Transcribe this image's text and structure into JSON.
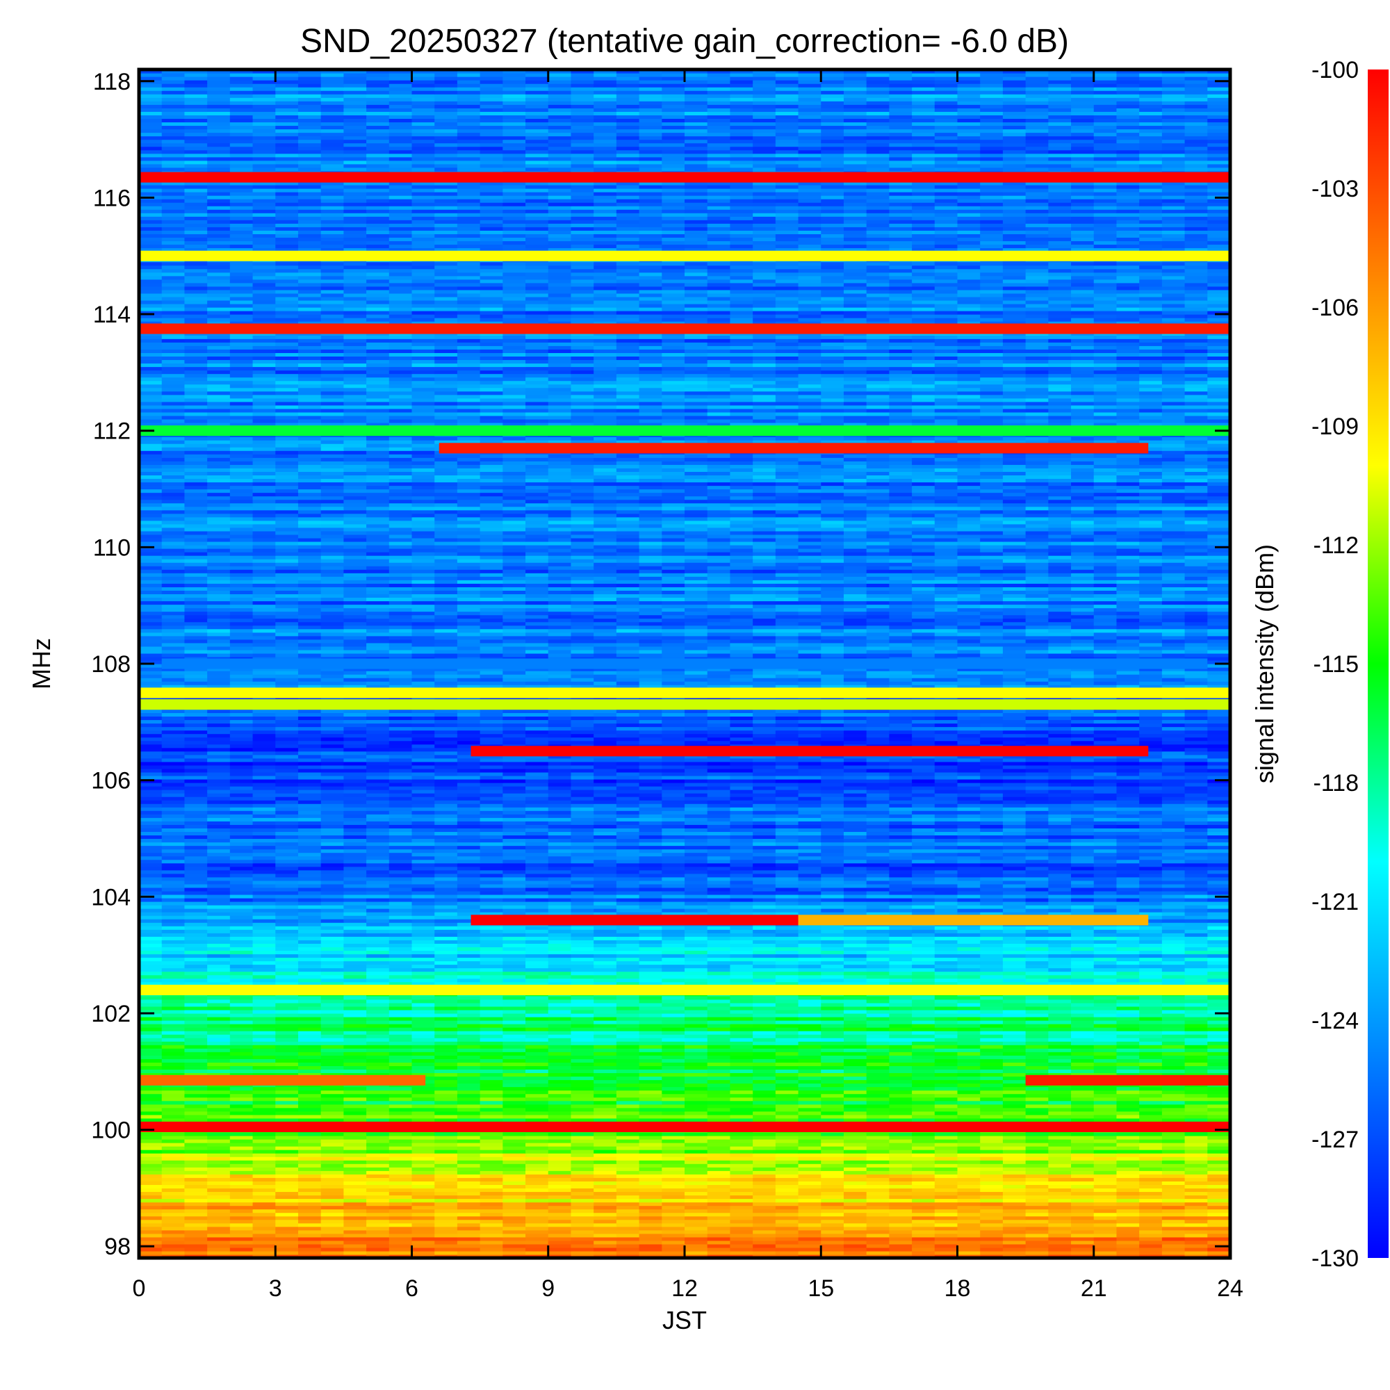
{
  "chart_data": {
    "type": "heatmap",
    "title": "SND_20250327 (tentative gain_correction= -6.0 dB)",
    "xlabel": "JST",
    "ylabel": "MHz",
    "colorbar_label": "signal intensity (dBm)",
    "xlim": [
      0,
      24
    ],
    "ylim": [
      97.8,
      118.2
    ],
    "clim": [
      -130,
      -100
    ],
    "x_ticks": [
      0,
      3,
      6,
      9,
      12,
      15,
      18,
      21,
      24
    ],
    "y_ticks": [
      98,
      100,
      102,
      104,
      106,
      108,
      110,
      112,
      114,
      116,
      118
    ],
    "colorbar_ticks": [
      -100,
      -103,
      -106,
      -109,
      -112,
      -115,
      -118,
      -121,
      -124,
      -127,
      -130
    ],
    "colormap": [
      "#0000ff",
      "#0080ff",
      "#00ffff",
      "#00ff00",
      "#ffff00",
      "#ff8000",
      "#ff0000"
    ],
    "background_profile": [
      {
        "mhz": 97.8,
        "dbm": -104
      },
      {
        "mhz": 98.5,
        "dbm": -107
      },
      {
        "mhz": 99.5,
        "dbm": -111
      },
      {
        "mhz": 100.5,
        "dbm": -115
      },
      {
        "mhz": 101.5,
        "dbm": -117
      },
      {
        "mhz": 102.5,
        "dbm": -119
      },
      {
        "mhz": 103.2,
        "dbm": -122
      },
      {
        "mhz": 104.2,
        "dbm": -126
      },
      {
        "mhz": 105.5,
        "dbm": -126
      },
      {
        "mhz": 106.5,
        "dbm": -128
      },
      {
        "mhz": 107.8,
        "dbm": -125
      },
      {
        "mhz": 110.0,
        "dbm": -125
      },
      {
        "mhz": 118.2,
        "dbm": -125
      }
    ],
    "strong_signals": [
      {
        "mhz": 116.35,
        "t_start": 0,
        "t_end": 24,
        "dbm": -100
      },
      {
        "mhz": 115.0,
        "t_start": 0,
        "t_end": 24,
        "dbm": -110
      },
      {
        "mhz": 113.75,
        "t_start": 0,
        "t_end": 24,
        "dbm": -101
      },
      {
        "mhz": 112.0,
        "t_start": 0,
        "t_end": 24,
        "dbm": -116
      },
      {
        "mhz": 111.7,
        "t_start": 6.6,
        "t_end": 22.2,
        "dbm": -101
      },
      {
        "mhz": 108.0,
        "t_start": 0.5,
        "t_end": 23.5,
        "dbm": -125
      },
      {
        "mhz": 107.5,
        "t_start": 0,
        "t_end": 24,
        "dbm": -110
      },
      {
        "mhz": 107.3,
        "t_start": 0,
        "t_end": 24,
        "dbm": -111
      },
      {
        "mhz": 106.5,
        "t_start": 7.3,
        "t_end": 22.2,
        "dbm": -100
      },
      {
        "mhz": 103.6,
        "t_start": 7.3,
        "t_end": 14.5,
        "dbm": -100
      },
      {
        "mhz": 103.6,
        "t_start": 14.5,
        "t_end": 22.2,
        "dbm": -107
      },
      {
        "mhz": 102.4,
        "t_start": 0,
        "t_end": 24,
        "dbm": -110
      },
      {
        "mhz": 100.85,
        "t_start": 0,
        "t_end": 6.3,
        "dbm": -104
      },
      {
        "mhz": 100.85,
        "t_start": 19.5,
        "t_end": 24,
        "dbm": -101
      },
      {
        "mhz": 100.05,
        "t_start": 0,
        "t_end": 24,
        "dbm": -100
      }
    ],
    "grid": false,
    "legend": "colorbar at right"
  }
}
